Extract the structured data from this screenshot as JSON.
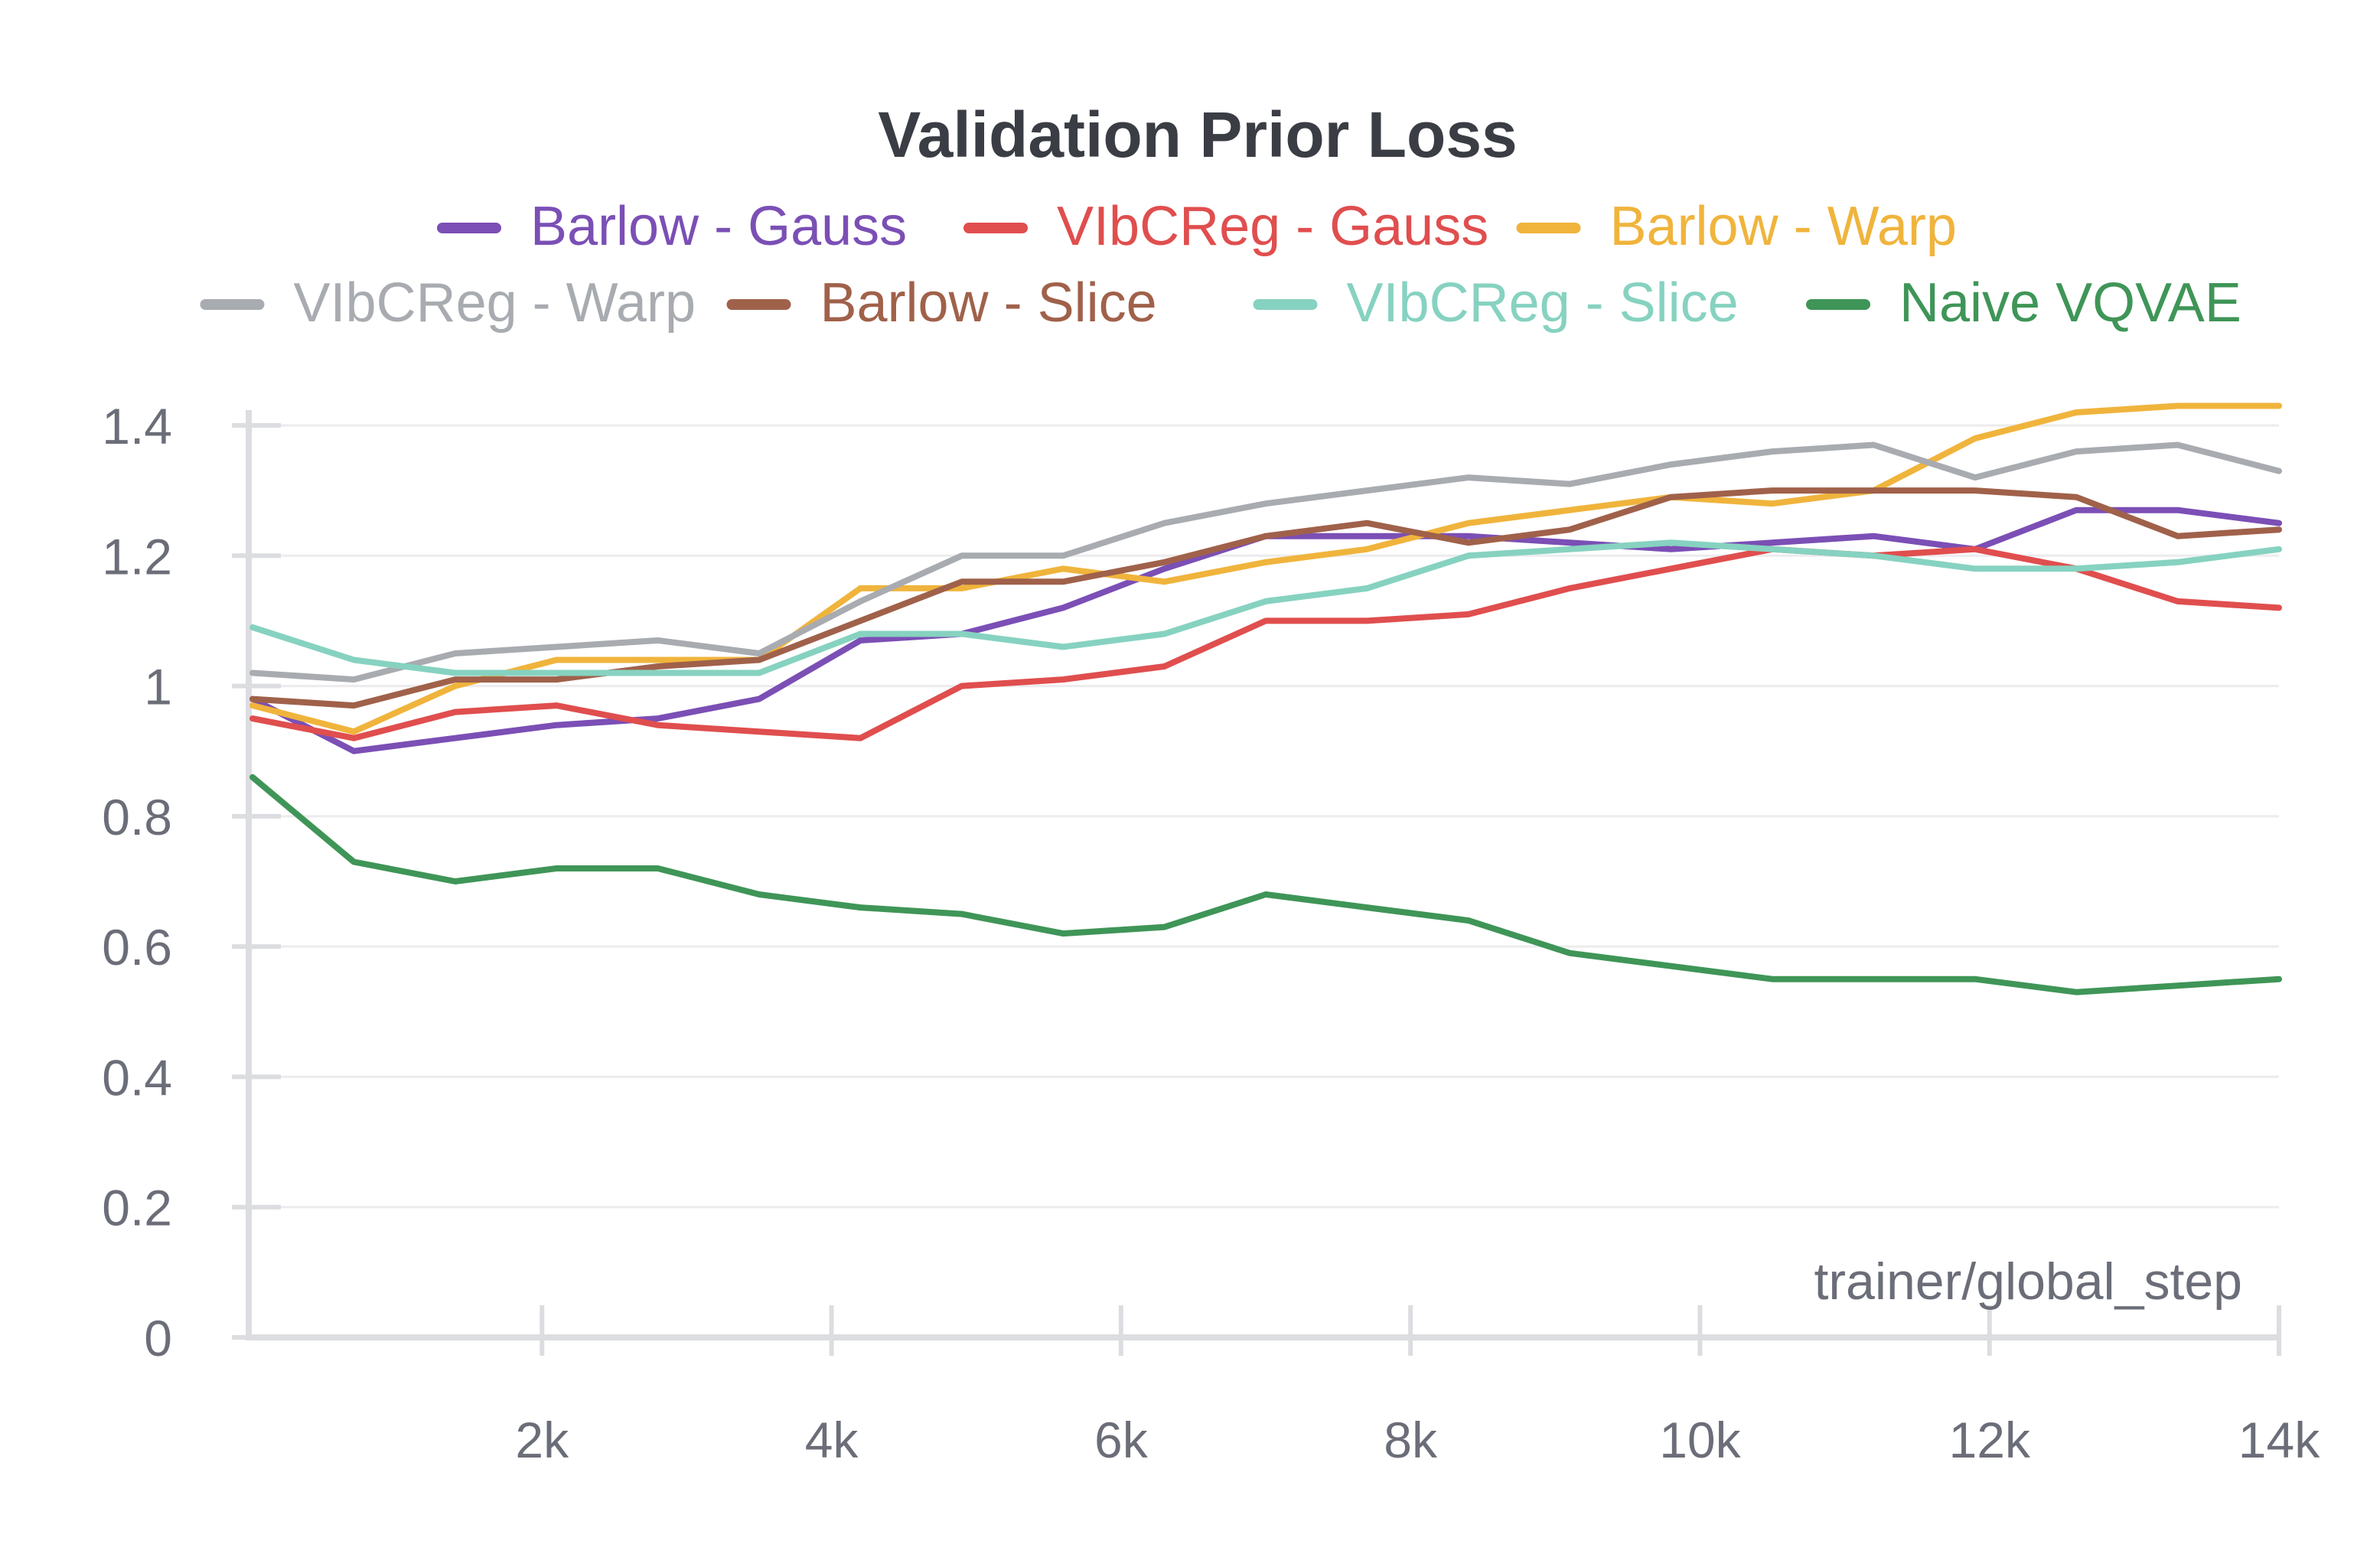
{
  "chart_data": {
    "type": "line",
    "title": "Validation Prior Loss",
    "xlabel": "trainer/global_step",
    "ylabel": "",
    "xlim": [
      0,
      14000
    ],
    "ylim": [
      0,
      1.4
    ],
    "x_ticks": [
      2000,
      4000,
      6000,
      8000,
      10000,
      12000,
      14000
    ],
    "x_tick_labels": [
      "2k",
      "4k",
      "6k",
      "8k",
      "10k",
      "12k",
      "14k"
    ],
    "y_ticks": [
      0,
      0.2,
      0.4,
      0.6,
      0.8,
      1,
      1.2,
      1.4
    ],
    "y_tick_labels": [
      "0",
      "0.2",
      "0.4",
      "0.6",
      "0.8",
      "1",
      "1.2",
      "1.4"
    ],
    "grid": "horizontal",
    "legend_position": "top",
    "x": [
      0,
      700,
      1400,
      2100,
      2800,
      3500,
      4200,
      4900,
      5600,
      6300,
      7000,
      7700,
      8400,
      9100,
      9800,
      10500,
      11200,
      11900,
      12600,
      13300,
      14000
    ],
    "series": [
      {
        "name": "Barlow - Gauss",
        "color": "#7b4fb5",
        "values": [
          0.98,
          0.9,
          0.92,
          0.94,
          0.95,
          0.98,
          1.07,
          1.08,
          1.12,
          1.18,
          1.23,
          1.23,
          1.23,
          1.22,
          1.21,
          1.22,
          1.23,
          1.21,
          1.27,
          1.27,
          1.25
        ]
      },
      {
        "name": "VIbCReg - Gauss",
        "color": "#e04e4e",
        "values": [
          0.95,
          0.92,
          0.96,
          0.97,
          0.94,
          0.93,
          0.92,
          1.0,
          1.01,
          1.03,
          1.1,
          1.1,
          1.11,
          1.15,
          1.18,
          1.21,
          1.2,
          1.21,
          1.18,
          1.13,
          1.12
        ]
      },
      {
        "name": "Barlow - Warp",
        "color": "#f0b43c",
        "values": [
          0.97,
          0.93,
          1.0,
          1.04,
          1.04,
          1.04,
          1.15,
          1.15,
          1.18,
          1.16,
          1.19,
          1.21,
          1.25,
          1.27,
          1.29,
          1.28,
          1.3,
          1.38,
          1.42,
          1.43,
          1.43
        ]
      },
      {
        "name": "VIbCReg - Warp",
        "color": "#a8abb0",
        "values": [
          1.02,
          1.01,
          1.05,
          1.06,
          1.07,
          1.05,
          1.13,
          1.2,
          1.2,
          1.25,
          1.28,
          1.3,
          1.32,
          1.31,
          1.34,
          1.36,
          1.37,
          1.32,
          1.36,
          1.37,
          1.33
        ]
      },
      {
        "name": "Barlow - Slice",
        "color": "#a0614a",
        "values": [
          0.98,
          0.97,
          1.01,
          1.01,
          1.03,
          1.04,
          1.1,
          1.16,
          1.16,
          1.19,
          1.23,
          1.25,
          1.22,
          1.24,
          1.29,
          1.3,
          1.3,
          1.3,
          1.29,
          1.23,
          1.24
        ]
      },
      {
        "name": "VIbCReg - Slice",
        "color": "#86d2c0",
        "values": [
          1.09,
          1.04,
          1.02,
          1.02,
          1.02,
          1.02,
          1.08,
          1.08,
          1.06,
          1.08,
          1.13,
          1.15,
          1.2,
          1.21,
          1.22,
          1.21,
          1.2,
          1.18,
          1.18,
          1.19,
          1.21
        ]
      },
      {
        "name": "Naive VQVAE",
        "color": "#3f9557",
        "values": [
          0.86,
          0.73,
          0.7,
          0.72,
          0.72,
          0.68,
          0.66,
          0.65,
          0.62,
          0.63,
          0.68,
          0.66,
          0.64,
          0.59,
          0.57,
          0.55,
          0.55,
          0.55,
          0.53,
          0.54,
          0.55
        ]
      }
    ]
  },
  "colors": {
    "title_text": "#3a3d44",
    "tick_text": "#6b6e78",
    "axis_line": "#dcdde0",
    "grid_line": "#ececee"
  }
}
